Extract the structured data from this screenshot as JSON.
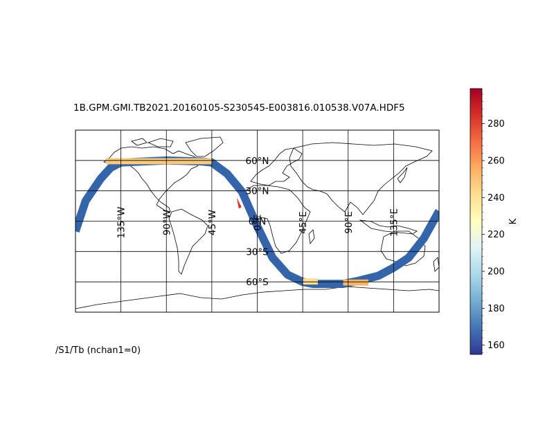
{
  "title": "1B.GPM.GMI.TB2021.20160105-S230545-E003816.010538.V07A.HDF5",
  "subtitle": "/S1/Tb (nchan1=0)",
  "map": {
    "projection": "cylindrical",
    "lon_range": [
      -180,
      180
    ],
    "lat_range": [
      -90,
      90
    ],
    "meridian_labels": [
      "135°W",
      "90°W",
      "45°W",
      "0°E",
      "45°E",
      "90°E",
      "135°E"
    ],
    "meridian_values": [
      -135,
      -90,
      -45,
      0,
      45,
      90,
      135
    ],
    "parallel_labels": [
      "60°N",
      "30°N",
      "0°N",
      "30°S",
      "60°S"
    ],
    "parallel_values": [
      60,
      30,
      0,
      -30,
      -60
    ]
  },
  "colorbar": {
    "label": "K",
    "range": [
      155,
      299
    ],
    "ticks": [
      "160",
      "180",
      "200",
      "220",
      "240",
      "260",
      "280"
    ],
    "tick_values": [
      160,
      180,
      200,
      220,
      240,
      260,
      280
    ],
    "colormap": [
      "#313695",
      "#4575b4",
      "#74add1",
      "#abd9e9",
      "#e0f3f8",
      "#ffffbf",
      "#fee090",
      "#fdae61",
      "#f46d43",
      "#d73027",
      "#a50026"
    ]
  },
  "swath": {
    "track": [
      [
        -180,
        -10
      ],
      [
        -170,
        20
      ],
      [
        -155,
        42
      ],
      [
        -145,
        53
      ],
      [
        -135,
        58
      ],
      [
        -90,
        60
      ],
      [
        -55,
        59
      ],
      [
        -45,
        58
      ],
      [
        -30,
        47
      ],
      [
        -15,
        29
      ],
      [
        0,
        -5
      ],
      [
        15,
        -36
      ],
      [
        30,
        -53
      ],
      [
        45,
        -60
      ],
      [
        55,
        -62
      ],
      [
        85,
        -62
      ],
      [
        100,
        -59
      ],
      [
        120,
        -54
      ],
      [
        135,
        -46
      ],
      [
        150,
        -36
      ],
      [
        165,
        -17
      ],
      [
        180,
        10
      ]
    ],
    "width_deg": 8,
    "ocean_color": "#3465ab",
    "land_warm_segments": [
      {
        "lon": [
          -150,
          -45
        ],
        "lat_center": 59,
        "color": "#fcc97a"
      },
      {
        "lon": [
          45,
          60
        ],
        "lat_center": -60,
        "color": "#fddc8f"
      },
      {
        "lon": [
          85,
          110
        ],
        "lat_center": -61,
        "color": "#fdb565"
      }
    ],
    "hot_spot": {
      "lon": -19,
      "lat": 18,
      "color": "#d73027"
    }
  }
}
